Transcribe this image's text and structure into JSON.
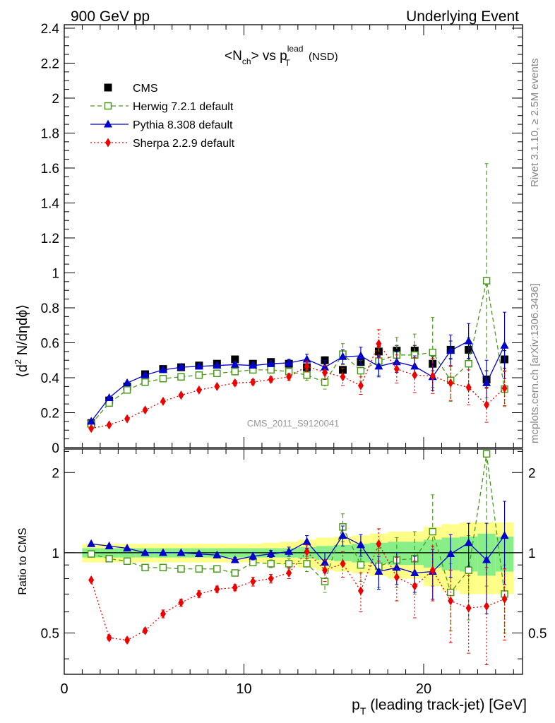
{
  "header": {
    "left": "900 GeV pp",
    "right": "Underlying Event"
  },
  "side_labels": {
    "rivet": "Rivet 3.1.10, ≥ 2.5M events",
    "mcplots": "mcplots.cern.ch [arXiv:1306.3436]"
  },
  "watermark": "CMS_2011_S9120041",
  "title": {
    "pre": "<N",
    "sub1": "ch",
    "mid": "> vs p",
    "sup": "lead",
    "sub2": "T",
    "post": " (NSD)"
  },
  "ylabel": {
    "pre": "⟨d",
    "sup": "2",
    "post": " N/dηdϕ⟩"
  },
  "xlabel": {
    "p": "p",
    "sub": "T",
    "rest": " (leading track-jet) [GeV]"
  },
  "ratio_ylabel": "Ratio to CMS",
  "legend": [
    {
      "label": "CMS",
      "color": "#000000",
      "marker": "square-filled",
      "line": "none"
    },
    {
      "label": "Herwig 7.2.1 default",
      "color": "#4a9a1a",
      "marker": "square-open",
      "line": "dashed"
    },
    {
      "label": "Pythia 8.308 default",
      "color": "#0000cc",
      "marker": "triangle",
      "line": "solid"
    },
    {
      "label": "Sherpa 2.2.9 default",
      "color": "#ee0000",
      "marker": "diamond",
      "line": "dotted"
    }
  ],
  "chart_data": {
    "type": "scatter",
    "x": [
      1.5,
      2.5,
      3.5,
      4.5,
      5.5,
      6.5,
      7.5,
      8.5,
      9.5,
      10.5,
      11.5,
      12.5,
      13.5,
      14.5,
      15.5,
      16.5,
      17.5,
      18.5,
      19.5,
      20.5,
      21.5,
      22.5,
      23.5,
      24.5
    ],
    "xlim": [
      0,
      25.5
    ],
    "main": {
      "ylim": [
        0,
        2.42
      ],
      "yticks": [
        0.2,
        0.4,
        0.6,
        0.8,
        1,
        1.2,
        1.4,
        1.6,
        1.8,
        2,
        2.2,
        2.4
      ],
      "ytick_labels": [
        "0.2",
        "0.4",
        "0.6",
        "0.8",
        "1",
        "1.2",
        "1.4",
        "1.6",
        "1.8",
        "2",
        "2.2",
        "2.4"
      ],
      "series": [
        {
          "name": "CMS",
          "values": [
            0.14,
            0.27,
            0.35,
            0.42,
            0.45,
            0.46,
            0.47,
            0.48,
            0.505,
            0.48,
            0.49,
            0.48,
            0.46,
            0.5,
            0.445,
            0.49,
            0.55,
            0.555,
            0.555,
            0.48,
            0.56,
            0.56,
            0.39,
            0.505
          ],
          "errors": [
            0.01,
            0.01,
            0.01,
            0.01,
            0.01,
            0.01,
            0.01,
            0.01,
            0.01,
            0.01,
            0.01,
            0.015,
            0.015,
            0.02,
            0.02,
            0.02,
            0.03,
            0.03,
            0.03,
            0.04,
            0.05,
            0.05,
            0.05,
            0.05
          ]
        },
        {
          "name": "Herwig 7.2.1 default",
          "values": [
            0.135,
            0.255,
            0.33,
            0.375,
            0.395,
            0.405,
            0.415,
            0.425,
            0.435,
            0.445,
            0.445,
            0.435,
            0.415,
            0.375,
            0.535,
            0.44,
            0.495,
            0.53,
            0.53,
            0.545,
            0.385,
            0.48,
            0.955,
            0.335
          ],
          "errors": [
            0.005,
            0.01,
            0.01,
            0.01,
            0.01,
            0.01,
            0.01,
            0.01,
            0.01,
            0.01,
            0.015,
            0.02,
            0.03,
            0.04,
            0.06,
            0.06,
            0.08,
            0.1,
            0.12,
            0.2,
            0.12,
            0.15,
            0.67,
            0.1
          ]
        },
        {
          "name": "Pythia 8.308 default",
          "values": [
            0.15,
            0.285,
            0.37,
            0.415,
            0.445,
            0.46,
            0.465,
            0.47,
            0.475,
            0.47,
            0.48,
            0.485,
            0.505,
            0.46,
            0.52,
            0.525,
            0.465,
            0.49,
            0.465,
            0.405,
            0.555,
            0.61,
            0.37,
            0.585
          ],
          "errors": [
            0.005,
            0.005,
            0.01,
            0.01,
            0.01,
            0.01,
            0.01,
            0.01,
            0.015,
            0.015,
            0.015,
            0.02,
            0.03,
            0.04,
            0.04,
            0.05,
            0.06,
            0.06,
            0.06,
            0.08,
            0.09,
            0.1,
            0.13,
            0.19
          ]
        },
        {
          "name": "Sherpa 2.2.9 default",
          "values": [
            0.11,
            0.13,
            0.165,
            0.215,
            0.265,
            0.3,
            0.33,
            0.35,
            0.37,
            0.375,
            0.39,
            0.405,
            0.465,
            0.43,
            0.405,
            0.355,
            0.595,
            0.45,
            0.415,
            0.41,
            0.37,
            0.345,
            0.245,
            0.34
          ],
          "errors": [
            0.005,
            0.005,
            0.01,
            0.01,
            0.01,
            0.01,
            0.01,
            0.01,
            0.015,
            0.015,
            0.015,
            0.02,
            0.03,
            0.04,
            0.05,
            0.05,
            0.08,
            0.08,
            0.1,
            0.1,
            0.1,
            0.1,
            0.1,
            0.1
          ]
        }
      ]
    },
    "ratio": {
      "ylim": [
        0.35,
        2.45
      ],
      "yticks": [
        0.5,
        1,
        2
      ],
      "ytick_labels": [
        "0.5",
        "1",
        "2"
      ],
      "band_inner": [
        0.04,
        0.04,
        0.04,
        0.04,
        0.04,
        0.04,
        0.04,
        0.04,
        0.04,
        0.04,
        0.04,
        0.04,
        0.05,
        0.06,
        0.07,
        0.08,
        0.09,
        0.1,
        0.1,
        0.12,
        0.14,
        0.15,
        0.18,
        0.15
      ],
      "band_outer": [
        0.08,
        0.08,
        0.08,
        0.08,
        0.08,
        0.08,
        0.08,
        0.08,
        0.08,
        0.08,
        0.09,
        0.1,
        0.12,
        0.14,
        0.15,
        0.16,
        0.18,
        0.2,
        0.2,
        0.25,
        0.28,
        0.3,
        0.3,
        0.3
      ],
      "series": [
        {
          "name": "Herwig 7.2.1 default",
          "values": [
            0.99,
            0.95,
            0.93,
            0.88,
            0.88,
            0.87,
            0.87,
            0.87,
            0.84,
            0.92,
            0.91,
            0.91,
            0.91,
            0.78,
            1.25,
            0.9,
            0.89,
            0.94,
            0.95,
            1.2,
            0.71,
            0.86,
            2.35,
            0.7
          ],
          "errors": [
            0.01,
            0.01,
            0.01,
            0.01,
            0.01,
            0.01,
            0.01,
            0.01,
            0.02,
            0.02,
            0.03,
            0.04,
            0.06,
            0.07,
            0.15,
            0.12,
            0.15,
            0.2,
            0.25,
            0.45,
            0.2,
            0.3,
            1.6,
            0.2
          ]
        },
        {
          "name": "Pythia 8.308 default",
          "values": [
            1.08,
            1.06,
            1.04,
            1.0,
            1.0,
            1.0,
            0.99,
            0.98,
            0.94,
            0.97,
            0.99,
            1.01,
            1.1,
            0.92,
            1.16,
            1.07,
            0.85,
            0.88,
            0.84,
            0.85,
            0.99,
            1.09,
            0.94,
            1.16
          ],
          "errors": [
            0.01,
            0.01,
            0.01,
            0.01,
            0.01,
            0.01,
            0.02,
            0.02,
            0.02,
            0.03,
            0.03,
            0.04,
            0.06,
            0.08,
            0.1,
            0.1,
            0.12,
            0.12,
            0.13,
            0.18,
            0.18,
            0.2,
            0.35,
            0.4
          ]
        },
        {
          "name": "Sherpa 2.2.9 default",
          "values": [
            0.79,
            0.48,
            0.47,
            0.51,
            0.59,
            0.65,
            0.7,
            0.73,
            0.74,
            0.78,
            0.8,
            0.84,
            1.01,
            0.86,
            0.91,
            0.72,
            1.08,
            0.81,
            0.75,
            0.86,
            0.66,
            0.62,
            0.63,
            0.67
          ],
          "errors": [
            0.01,
            0.01,
            0.01,
            0.01,
            0.02,
            0.02,
            0.02,
            0.02,
            0.02,
            0.03,
            0.03,
            0.04,
            0.06,
            0.08,
            0.1,
            0.12,
            0.15,
            0.15,
            0.18,
            0.2,
            0.2,
            0.2,
            0.25,
            0.2
          ]
        }
      ]
    }
  }
}
